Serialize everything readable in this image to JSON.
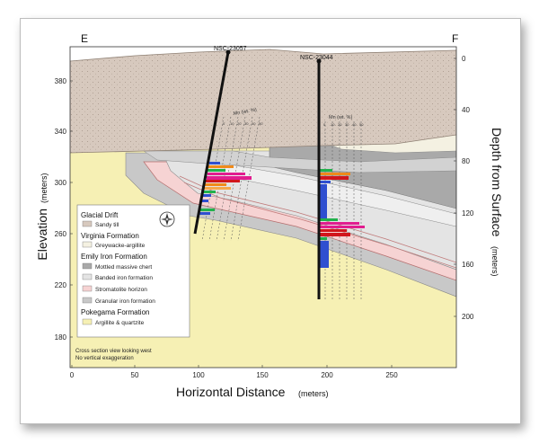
{
  "section": {
    "left_end_label": "E",
    "right_end_label": "F"
  },
  "boreholes": [
    {
      "name": "NSC-23057",
      "mn_label": "Mn (wt. %)"
    },
    {
      "name": "NSC-23044",
      "mn_label": "Mn (wt. %)"
    }
  ],
  "axes": {
    "elevation_label": "Elevation",
    "elevation_unit": "(meters)",
    "elevation_ticks": [
      "380",
      "340",
      "300",
      "260",
      "220",
      "180"
    ],
    "depth_label": "Depth from Surface",
    "depth_unit": "(meters)",
    "depth_ticks": [
      "0",
      "40",
      "80",
      "120",
      "160",
      "200"
    ],
    "distance_label": "Horizontal Distance",
    "distance_unit": "(meters)",
    "distance_ticks": [
      "0",
      "50",
      "100",
      "150",
      "200",
      "250"
    ]
  },
  "legend": {
    "groups": [
      {
        "title": "Glacial Drift",
        "items": [
          {
            "label": "Sandy till",
            "color": "#d7c9be"
          }
        ]
      },
      {
        "title": "Virginia Formation",
        "items": [
          {
            "label": "Greywacke-argillite",
            "color": "#f4f1e2"
          }
        ]
      },
      {
        "title": "Emily Iron Formation",
        "items": [
          {
            "label": "Mottled massive chert",
            "color": "#a9a9a9"
          },
          {
            "label": "Banded iron formation",
            "color": "#e4e4e4"
          },
          {
            "label": "Stromatolite horizon",
            "color": "#f6d3d3"
          },
          {
            "label": "Granular iron formation",
            "color": "#c8c8c8"
          }
        ]
      },
      {
        "title": "Pokegama Formation",
        "items": [
          {
            "label": "Argillite & quartzite",
            "color": "#f6f0b4"
          }
        ]
      }
    ]
  },
  "notes": [
    "Cross section view looking west",
    "No vertical exaggeration"
  ],
  "colors": {
    "till": "#d7c9be",
    "pokegama": "#f6f0b4",
    "banded": "#e4e4e4",
    "mottled": "#a9a9a9",
    "granular": "#c8c8c8",
    "stromatolite": "#f6d3d3",
    "borehole": "#111111"
  },
  "icons": [
    "compass-rose-icon"
  ]
}
